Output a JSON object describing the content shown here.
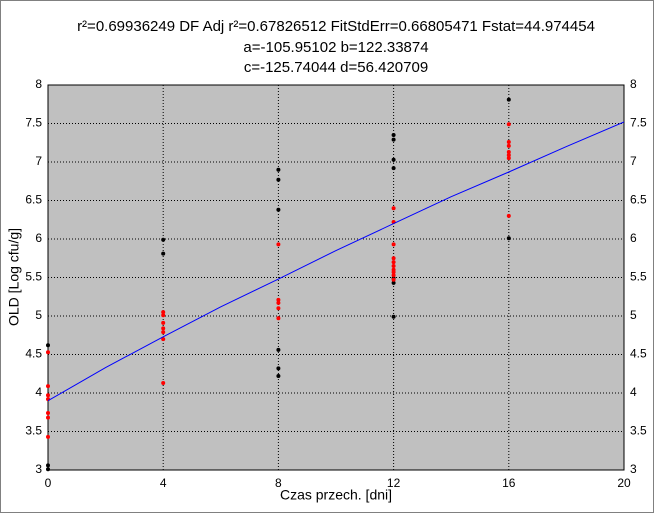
{
  "chart_data": {
    "type": "scatter",
    "title": [
      "r²=0.69936249  DF Adj r²=0.67826512  FitStdErr=0.66805471  Fstat=44.974454",
      "a=-105.95102 b=122.33874",
      "c=-125.74044 d=56.420709"
    ],
    "x_label": "Czas przech. [dni]",
    "y_label": "OLD [Log cfu/g]",
    "xlim": [
      0,
      20
    ],
    "xticks": [
      0,
      4,
      8,
      12,
      16,
      20
    ],
    "ylim": [
      3,
      8
    ],
    "yticks": [
      3,
      3.5,
      4,
      4.5,
      5,
      5.5,
      6,
      6.5,
      7,
      7.5,
      8
    ],
    "y2ticks": [
      3,
      3.5,
      4,
      4.5,
      5,
      5.5,
      6,
      6.5,
      7,
      7.5,
      8
    ],
    "grid": true,
    "background": "#c0c0c0",
    "series": [
      {
        "color": "#000000",
        "style": "points",
        "x": [
          0,
          0,
          0,
          4,
          4,
          8,
          8,
          8,
          8,
          8,
          8,
          12,
          12,
          12,
          12,
          12,
          12,
          12,
          16,
          16
        ],
        "values": [
          4.62,
          3.06,
          3.01,
          5.99,
          5.81,
          6.9,
          6.77,
          6.38,
          4.56,
          4.32,
          4.22,
          7.35,
          7.29,
          7.03,
          6.92,
          5.49,
          5.43,
          4.99,
          7.81,
          6.01
        ]
      },
      {
        "color": "#ff0000",
        "style": "points",
        "x": [
          0,
          0,
          0,
          0,
          0,
          0,
          0,
          4,
          4,
          4,
          4,
          4,
          4,
          4,
          8,
          8,
          8,
          8,
          8,
          12,
          12,
          12,
          12,
          12,
          12,
          12,
          12,
          12,
          12,
          16,
          16,
          16,
          16,
          16,
          16,
          16
        ],
        "values": [
          4.53,
          4.09,
          3.97,
          3.92,
          3.74,
          3.68,
          3.43,
          5.05,
          5.01,
          4.91,
          4.84,
          4.79,
          4.7,
          4.13,
          5.93,
          5.21,
          5.17,
          5.1,
          4.97,
          6.4,
          6.22,
          5.93,
          5.75,
          5.7,
          5.65,
          5.6,
          5.57,
          5.53,
          5.47,
          7.49,
          7.26,
          7.21,
          7.13,
          7.09,
          7.05,
          6.3
        ]
      },
      {
        "color": "#0000ff",
        "style": "line",
        "x": [
          0,
          2,
          4,
          6,
          8,
          10,
          12,
          14,
          16,
          18,
          20
        ],
        "values": [
          3.9,
          4.33,
          4.73,
          5.12,
          5.48,
          5.85,
          6.2,
          6.55,
          6.87,
          7.2,
          7.52
        ]
      }
    ]
  }
}
